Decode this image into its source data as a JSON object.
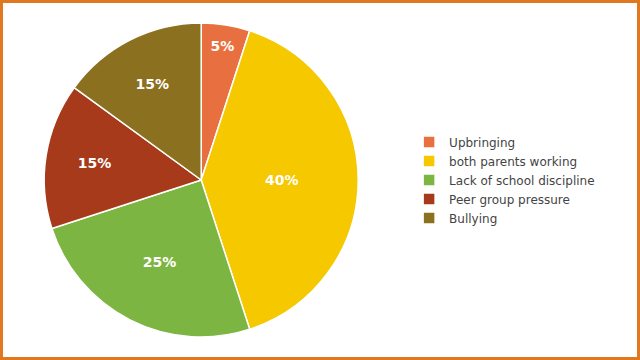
{
  "chart_data": {
    "type": "pie",
    "labels": [
      "Upbringing",
      "both parents working",
      "Lack of school discipline",
      "Peer group pressure",
      "Bullying"
    ],
    "values": [
      5,
      40,
      25,
      15,
      15
    ],
    "value_labels": [
      "5%",
      "40%",
      "25%",
      "15%",
      "15%"
    ],
    "colors": [
      "#E87040",
      "#F5C800",
      "#7DB542",
      "#A63A1A",
      "#8B7020"
    ],
    "data_labels": true,
    "legend": "right"
  }
}
